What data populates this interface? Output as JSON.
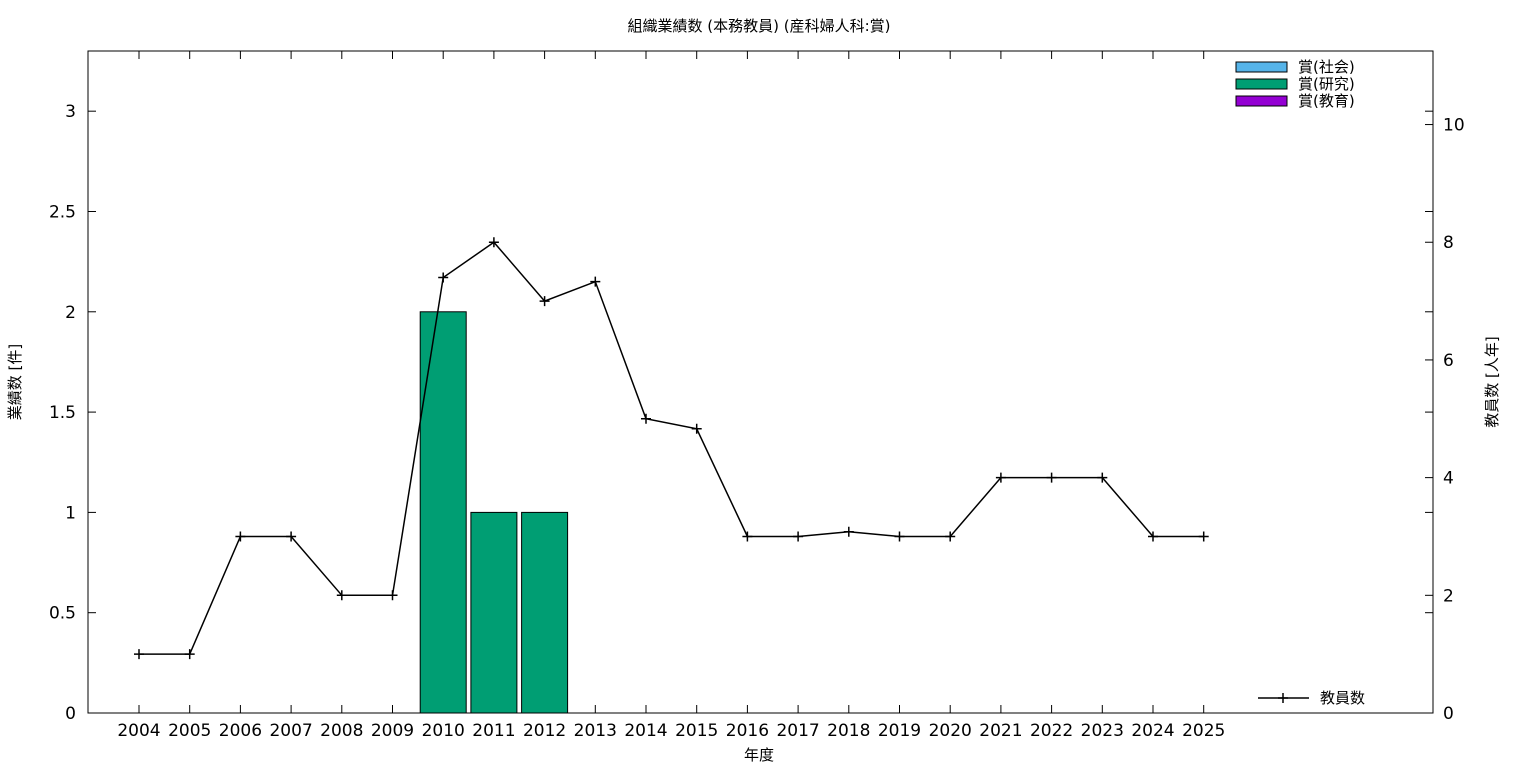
{
  "chart_data": {
    "type": "bar",
    "title": "組織業績数 (本務教員) (産科婦人科:賞)",
    "xlabel": "年度",
    "ylabel": "業績数 [件]",
    "y2label": "教員数 [人年]",
    "categories": [
      "2004",
      "2005",
      "2006",
      "2007",
      "2008",
      "2009",
      "2010",
      "2011",
      "2012",
      "2013",
      "2014",
      "2015",
      "2016",
      "2017",
      "2018",
      "2019",
      "2020",
      "2021",
      "2022",
      "2023",
      "2024",
      "2025"
    ],
    "ylim": [
      0,
      3.3
    ],
    "y2lim": [
      0,
      11.25
    ],
    "yticks": [
      "0",
      "0.5",
      "1",
      "1.5",
      "2",
      "2.5",
      "3"
    ],
    "y2ticks": [
      "0",
      "2",
      "4",
      "6",
      "8",
      "10"
    ],
    "series": [
      {
        "name": "賞(社会)",
        "kind": "bar",
        "axis": "left",
        "color": "#56b4e9",
        "values": [
          0,
          0,
          0,
          0,
          0,
          0,
          0,
          0,
          0,
          0,
          0,
          0,
          0,
          0,
          0,
          0,
          0,
          0,
          0,
          0,
          0,
          0
        ]
      },
      {
        "name": "賞(研究)",
        "kind": "bar",
        "axis": "left",
        "color": "#009e73",
        "values": [
          0,
          0,
          0,
          0,
          0,
          0,
          2,
          1,
          1,
          0,
          0,
          0,
          0,
          0,
          0,
          0,
          0,
          0,
          0,
          0,
          0,
          0
        ]
      },
      {
        "name": "賞(教育)",
        "kind": "bar",
        "axis": "left",
        "color": "#9400d3",
        "values": [
          0,
          0,
          0,
          0,
          0,
          0,
          0,
          0,
          0,
          0,
          0,
          0,
          0,
          0,
          0,
          0,
          0,
          0,
          0,
          0,
          0,
          0
        ]
      },
      {
        "name": "教員数",
        "kind": "line",
        "axis": "right",
        "color": "#000000",
        "values": [
          1,
          1,
          3,
          3,
          2,
          2,
          7.4,
          8,
          7,
          7.33,
          5,
          4.83,
          3,
          3,
          3.08,
          3,
          3,
          4,
          4,
          4,
          3,
          3
        ]
      }
    ],
    "legend_bars": "top-right",
    "legend_line": "bottom-right",
    "grid": false
  }
}
